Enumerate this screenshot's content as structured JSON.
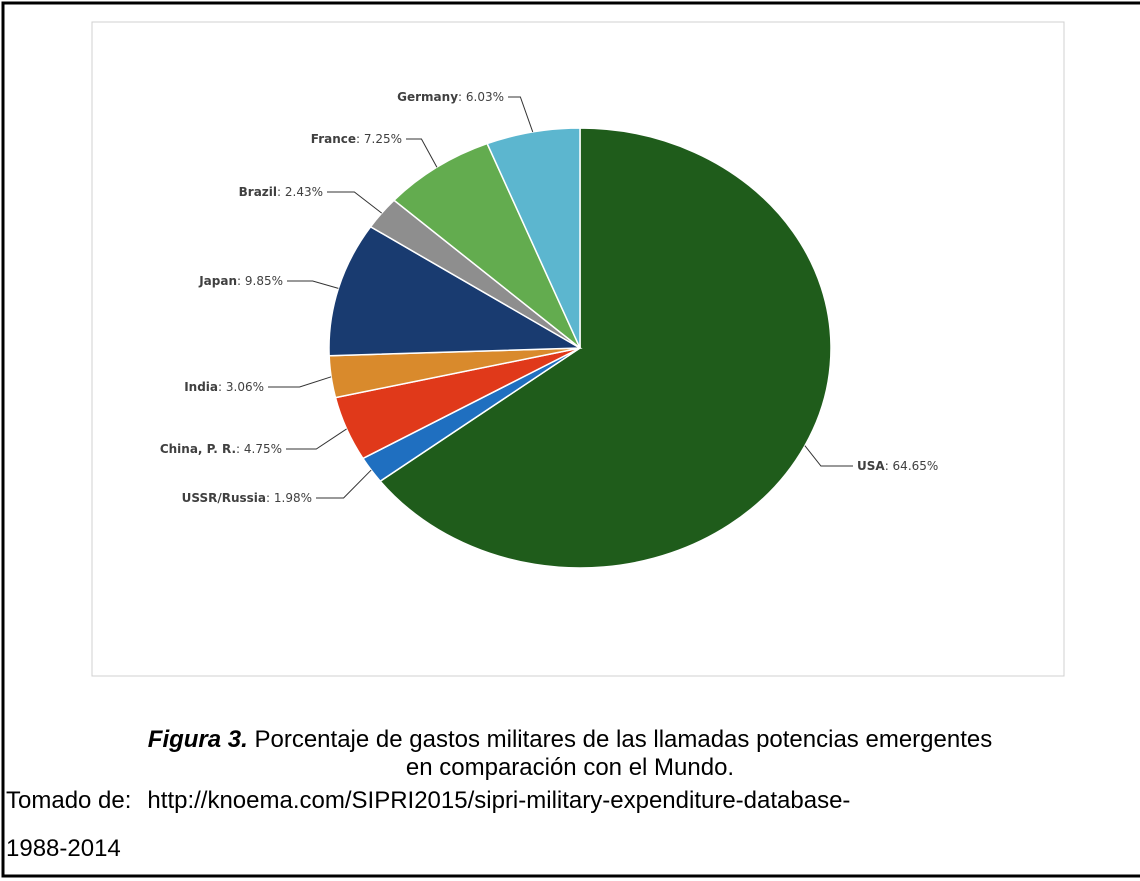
{
  "chart_data": {
    "type": "pie",
    "categories": [
      "USA",
      "USSR/Russia",
      "China, P. R.",
      "India",
      "Japan",
      "Brazil",
      "France",
      "Germany"
    ],
    "values": [
      64.65,
      1.98,
      4.75,
      3.06,
      9.85,
      2.43,
      7.25,
      6.03
    ],
    "value_labels": [
      "64.65%",
      "1.98%",
      "4.75%",
      "3.06%",
      "9.85%",
      "2.43%",
      "7.25%",
      "6.03%"
    ],
    "colors": [
      "#1f5c1b",
      "#1f6fc0",
      "#e0391a",
      "#d98a2c",
      "#193b70",
      "#8e8e8e",
      "#63ac4f",
      "#5cb6cf"
    ]
  },
  "caption": {
    "figure_label": "Figura 3.",
    "line1": "Porcentaje de gastos militares de las llamadas potencias emergentes",
    "line2": "en comparación con el Mundo."
  },
  "source": {
    "label": "Tomado de:",
    "url": "http://knoema.com/SIPRI2015/sipri-military-expenditure-database-",
    "continuation": "1988-2014"
  }
}
